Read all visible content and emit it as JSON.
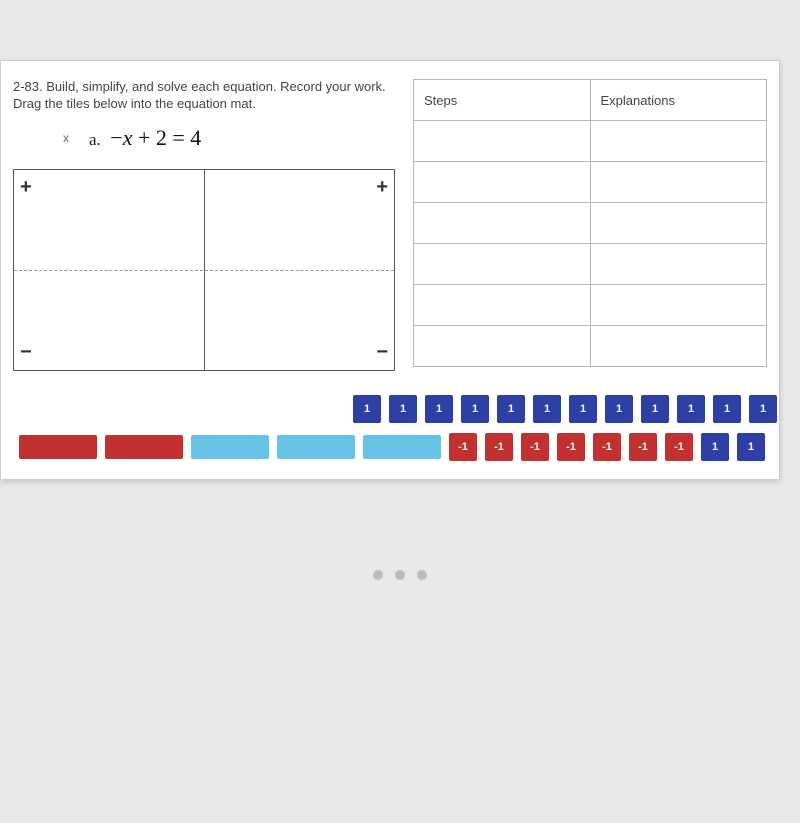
{
  "problem": {
    "number": "2-83.",
    "instructions": "Build, simplify, and solve each equation. Record your work. Drag the tiles below into the equation mat.",
    "part_label": "a.",
    "equation_html": "−x + 2 = 4",
    "x_mark": "x"
  },
  "mat": {
    "signs": {
      "plus": "+",
      "minus": "−"
    }
  },
  "table": {
    "headers": [
      "Steps",
      "Explanations"
    ],
    "row_count": 6
  },
  "tiles": {
    "unit_label": "1",
    "neg_unit_label": "-1",
    "bar_pos_label": "",
    "bar_neg_label": "",
    "colors": {
      "unit_pos": "#2e3fa6",
      "unit_neg": "#c23030",
      "bar_pos": "#66c3e6",
      "bar_neg": "#c23030"
    },
    "row_top": [
      {
        "type": "unit",
        "sign": "pos"
      },
      {
        "type": "unit",
        "sign": "pos"
      },
      {
        "type": "unit",
        "sign": "pos"
      },
      {
        "type": "unit",
        "sign": "pos"
      },
      {
        "type": "unit",
        "sign": "pos"
      },
      {
        "type": "unit",
        "sign": "pos"
      },
      {
        "type": "unit",
        "sign": "pos"
      },
      {
        "type": "unit",
        "sign": "pos"
      },
      {
        "type": "unit",
        "sign": "pos"
      },
      {
        "type": "unit",
        "sign": "pos"
      },
      {
        "type": "unit",
        "sign": "pos"
      },
      {
        "type": "unit",
        "sign": "pos"
      }
    ],
    "row_bottom": [
      {
        "type": "bar",
        "sign": "neg"
      },
      {
        "type": "bar",
        "sign": "neg"
      },
      {
        "type": "bar",
        "sign": "pos"
      },
      {
        "type": "bar",
        "sign": "pos"
      },
      {
        "type": "bar",
        "sign": "pos"
      },
      {
        "type": "unit",
        "sign": "neg"
      },
      {
        "type": "unit",
        "sign": "neg"
      },
      {
        "type": "unit",
        "sign": "neg"
      },
      {
        "type": "unit",
        "sign": "neg"
      },
      {
        "type": "unit",
        "sign": "neg"
      },
      {
        "type": "unit",
        "sign": "neg"
      },
      {
        "type": "unit",
        "sign": "neg"
      },
      {
        "type": "unit",
        "sign": "pos"
      },
      {
        "type": "unit",
        "sign": "pos"
      }
    ]
  }
}
